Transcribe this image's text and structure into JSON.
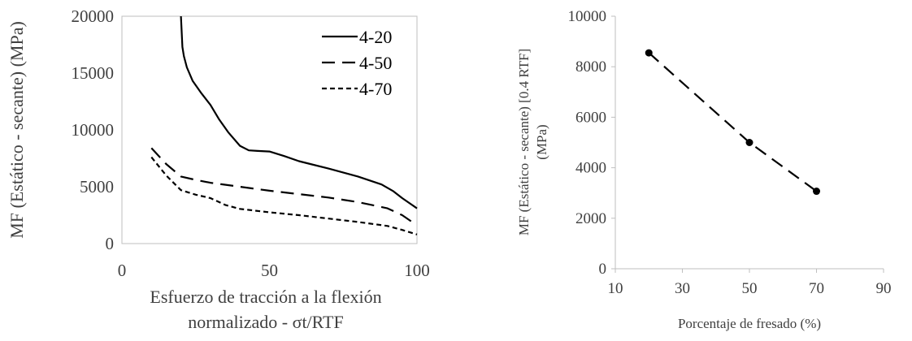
{
  "charts": [
    {
      "chart_data": {
        "type": "line",
        "title": "",
        "xlabel_lines": [
          "Esfuerzo de tracción a la flexión",
          "normalizado - σt/RTF"
        ],
        "ylabel": "MF (Estático - secante) (MPa)",
        "xlim": [
          0,
          100
        ],
        "ylim": [
          0,
          20000
        ],
        "xticks": [
          "0",
          "50",
          "100"
        ],
        "yticks": [
          "0",
          "5000",
          "10000",
          "15000",
          "20000"
        ],
        "legend_position": "top-right",
        "grid": false,
        "series": [
          {
            "name": "4-20",
            "dash": "solid",
            "x": [
              20,
              20.5,
              21,
              22,
              24,
              27,
              30,
              33,
              36,
              40,
              43,
              46,
              50,
              55,
              60,
              70,
              80,
              88,
              92,
              95,
              100
            ],
            "y": [
              20000,
              17300,
              16500,
              15500,
              14300,
              13200,
              12200,
              10900,
              9800,
              8600,
              8200,
              8150,
              8100,
              7700,
              7250,
              6600,
              5900,
              5200,
              4600,
              4000,
              3100
            ]
          },
          {
            "name": "4-50",
            "dash": "long",
            "x": [
              10,
              15,
              20,
              25,
              30,
              40,
              50,
              60,
              70,
              80,
              90,
              95,
              100
            ],
            "y": [
              8400,
              7000,
              5900,
              5600,
              5350,
              5000,
              4650,
              4350,
              4050,
              3650,
              3100,
              2500,
              1600
            ]
          },
          {
            "name": "4-70",
            "dash": "short",
            "x": [
              10,
              15,
              20,
              25,
              30,
              35,
              40,
              50,
              60,
              70,
              80,
              90,
              95,
              100
            ],
            "y": [
              7600,
              6000,
              4700,
              4300,
              4000,
              3400,
              3050,
              2750,
              2500,
              2200,
              1900,
              1550,
              1200,
              800
            ]
          }
        ]
      }
    },
    {
      "chart_data": {
        "type": "line",
        "title": "",
        "xlabel": "Porcentaje de fresado (%)",
        "ylabel_lines": [
          "MF (Estático - secante) [0.4 RTF]",
          "(MPa)"
        ],
        "xlim": [
          10,
          90
        ],
        "ylim": [
          0,
          10000
        ],
        "xticks": [
          "10",
          "30",
          "50",
          "70",
          "90"
        ],
        "yticks": [
          "0",
          "2000",
          "4000",
          "6000",
          "8000",
          "10000"
        ],
        "grid": false,
        "series": [
          {
            "dash": "long",
            "markers": true,
            "x": [
              20,
              50,
              70
            ],
            "y": [
              8550,
              5000,
              3070
            ]
          }
        ]
      }
    }
  ]
}
